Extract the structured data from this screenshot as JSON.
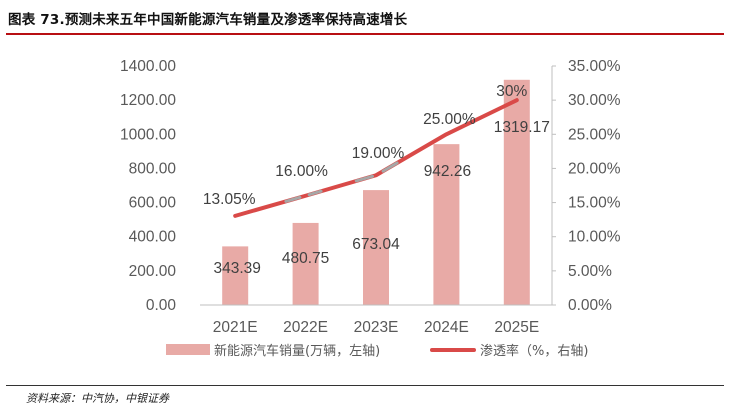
{
  "header": {
    "title": "图表 73.预测未来五年中国新能源汽车销量及渗透率保持高速增长"
  },
  "footer": {
    "source": "资料来源：中汽协，中银证券"
  },
  "colors": {
    "bar": "#e8aaa6",
    "line": "#d94a48",
    "rule": "#b80f13",
    "gray_segment": "#a6a6a6"
  },
  "chart_data": {
    "type": "bar",
    "categories": [
      "2021E",
      "2022E",
      "2023E",
      "2024E",
      "2025E"
    ],
    "series": [
      {
        "name": "新能源汽车销量(万辆，左轴)",
        "axis": "left",
        "type": "bar",
        "values": [
          343.39,
          480.75,
          673.04,
          942.26,
          1319.17
        ],
        "labels": [
          "343.39",
          "480.75",
          "673.04",
          "942.26",
          "1319.17"
        ]
      },
      {
        "name": "渗透率（%，右轴)",
        "axis": "right",
        "type": "line",
        "values": [
          13.05,
          16.0,
          19.0,
          25.0,
          30.0
        ],
        "labels": [
          "13.05%",
          "16.00%",
          "19.00%",
          "25.00%",
          "30%"
        ]
      }
    ],
    "y_left": {
      "min": 0,
      "max": 1400,
      "step": 200,
      "ticks": [
        "0.00",
        "200.00",
        "400.00",
        "600.00",
        "800.00",
        "1000.00",
        "1200.00",
        "1400.00"
      ]
    },
    "y_right": {
      "min": 0,
      "max": 35,
      "step": 5,
      "ticks": [
        "0.00%",
        "5.00%",
        "10.00%",
        "15.00%",
        "20.00%",
        "25.00%",
        "30.00%",
        "35.00%"
      ]
    },
    "grid": false,
    "legend_position": "bottom"
  }
}
